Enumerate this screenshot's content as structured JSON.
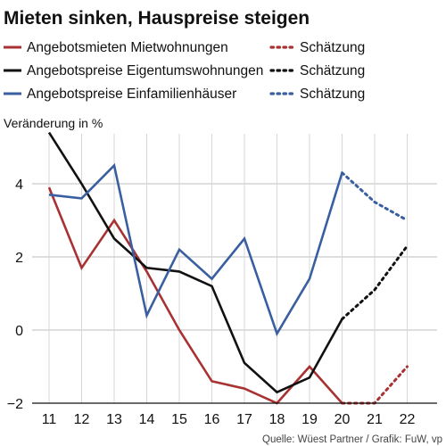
{
  "chart_data": {
    "type": "line",
    "title": "Mieten sinken, Hauspreise steigen",
    "ylabel": "Veränderung in %",
    "source": "Quelle: Wüest Partner / Grafik: FuW, vp",
    "x": [
      "11",
      "12",
      "13",
      "14",
      "15",
      "16",
      "17",
      "18",
      "19",
      "20",
      "21",
      "22"
    ],
    "ylim": [
      -2,
      5.5
    ],
    "yticks": [
      -2,
      0,
      2,
      4
    ],
    "ytick_labels": [
      "−2",
      "0",
      "2",
      "4"
    ],
    "grid": true,
    "series": [
      {
        "name": "Angebotsmieten Mietwohnungen",
        "color": "#a83232",
        "values": [
          3.9,
          1.7,
          3.0,
          1.6,
          0.0,
          -1.4,
          -1.6,
          -2.0,
          -1.0,
          -2.0,
          null,
          null
        ],
        "estimate_name": "Schätzung",
        "estimate_values": [
          null,
          null,
          null,
          null,
          null,
          null,
          null,
          null,
          null,
          -2.0,
          -2.0,
          -1.0
        ]
      },
      {
        "name": "Angebotspreise Eigentumswohnungen",
        "color": "#111111",
        "values": [
          5.4,
          4.0,
          2.5,
          1.7,
          1.6,
          1.2,
          -0.9,
          -1.7,
          -1.3,
          0.3,
          null,
          null
        ],
        "estimate_name": "Schätzung",
        "estimate_values": [
          null,
          null,
          null,
          null,
          null,
          null,
          null,
          null,
          null,
          0.3,
          1.1,
          2.3
        ]
      },
      {
        "name": "Angebotspreise Einfamilienhäuser",
        "color": "#3a5fa0",
        "values": [
          3.7,
          3.6,
          4.5,
          0.4,
          2.2,
          1.4,
          2.5,
          -0.1,
          1.4,
          4.3,
          null,
          null
        ],
        "estimate_name": "Schätzung",
        "estimate_values": [
          null,
          null,
          null,
          null,
          null,
          null,
          null,
          null,
          null,
          4.3,
          3.5,
          3.0
        ]
      }
    ]
  }
}
